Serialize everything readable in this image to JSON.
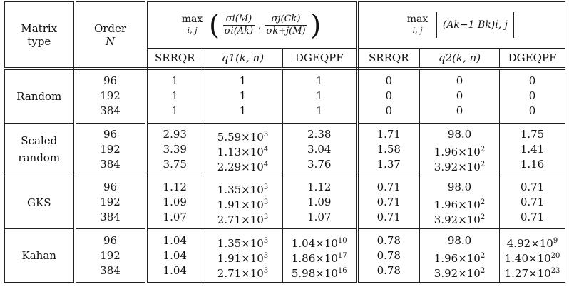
{
  "header": {
    "col1_line1": "Matrix",
    "col1_line2": "type",
    "col2_line1": "Order",
    "col2_line2": "N",
    "group1_max": "max",
    "group1_ij": "i, j",
    "group1_num1": "σi(M)",
    "group1_den1": "σi(Ak)",
    "group1_num2": "σj(Ck)",
    "group1_den2": "σk+j(M)",
    "group2_max": "max",
    "group2_ij": "i, j",
    "group2_expr": "(Ak−1 Bk)i, j",
    "sub_cols": [
      "SRRQR",
      "q1(k, n)",
      "DGEQPF",
      "SRRQR",
      "q2(k, n)",
      "DGEQPF"
    ]
  },
  "groups": [
    {
      "type_lines": [
        "Random"
      ],
      "orders": [
        "96",
        "192",
        "384"
      ],
      "srrqr1": [
        "1",
        "1",
        "1"
      ],
      "q1": [
        "1",
        "1",
        "1"
      ],
      "dgeqpf1": [
        "1",
        "1",
        "1"
      ],
      "srrqr2": [
        "0",
        "0",
        "0"
      ],
      "q2": [
        "0",
        "0",
        "0"
      ],
      "dgeqpf2": [
        "0",
        "0",
        "0"
      ]
    },
    {
      "type_lines": [
        "Scaled",
        "random"
      ],
      "orders": [
        "96",
        "192",
        "384"
      ],
      "srrqr1": [
        "2.93",
        "3.39",
        "3.75"
      ],
      "q1": [
        [
          "5.59×10",
          "3"
        ],
        [
          "1.13×10",
          "4"
        ],
        [
          "2.29×10",
          "4"
        ]
      ],
      "dgeqpf1": [
        "2.38",
        "3.04",
        "3.76"
      ],
      "srrqr2": [
        "1.71",
        "1.58",
        "1.37"
      ],
      "q2": [
        [
          "98.0",
          ""
        ],
        [
          "1.96×10",
          "2"
        ],
        [
          "3.92×10",
          "2"
        ]
      ],
      "dgeqpf2": [
        "1.75",
        "1.41",
        "1.16"
      ]
    },
    {
      "type_lines": [
        "GKS"
      ],
      "orders": [
        "96",
        "192",
        "384"
      ],
      "srrqr1": [
        "1.12",
        "1.09",
        "1.07"
      ],
      "q1": [
        [
          "1.35×10",
          "3"
        ],
        [
          "1.91×10",
          "3"
        ],
        [
          "2.71×10",
          "3"
        ]
      ],
      "dgeqpf1": [
        "1.12",
        "1.09",
        "1.07"
      ],
      "srrqr2": [
        "0.71",
        "0.71",
        "0.71"
      ],
      "q2": [
        [
          "98.0",
          ""
        ],
        [
          "1.96×10",
          "2"
        ],
        [
          "3.92×10",
          "2"
        ]
      ],
      "dgeqpf2": [
        "0.71",
        "0.71",
        "0.71"
      ]
    },
    {
      "type_lines": [
        "Kahan"
      ],
      "orders": [
        "96",
        "192",
        "384"
      ],
      "srrqr1": [
        "1.04",
        "1.04",
        "1.04"
      ],
      "q1": [
        [
          "1.35×10",
          "3"
        ],
        [
          "1.91×10",
          "3"
        ],
        [
          "2.71×10",
          "3"
        ]
      ],
      "dgeqpf1": [
        [
          "1.04×10",
          "10"
        ],
        [
          "1.86×10",
          "17"
        ],
        [
          "5.98×10",
          "16"
        ]
      ],
      "srrqr2": [
        "0.78",
        "0.78",
        "0.78"
      ],
      "q2": [
        [
          "98.0",
          ""
        ],
        [
          "1.96×10",
          "2"
        ],
        [
          "3.92×10",
          "2"
        ]
      ],
      "dgeqpf2": [
        [
          "4.92×10",
          "9"
        ],
        [
          "1.40×10",
          "20"
        ],
        [
          "1.27×10",
          "23"
        ]
      ]
    }
  ]
}
